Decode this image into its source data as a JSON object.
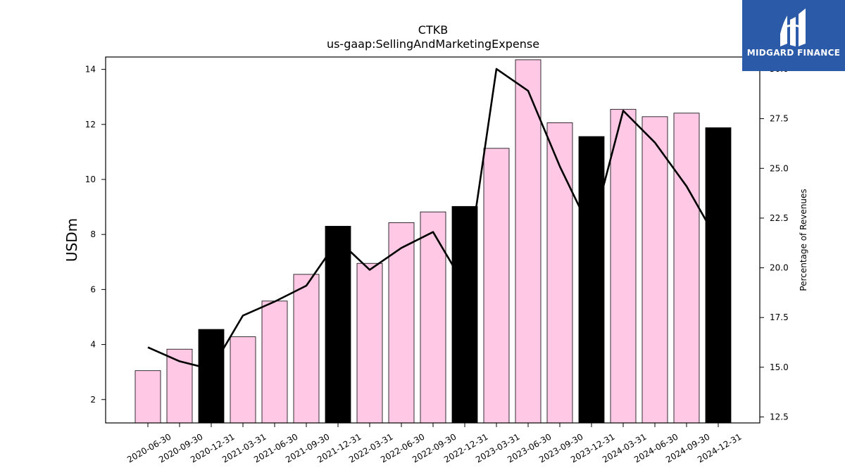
{
  "chart_data": {
    "type": "bar",
    "title": "CTKB",
    "subtitle": "us-gaap:SellingAndMarketingExpense",
    "ylabel": "USDm",
    "y2label": "Percentage of Revenues",
    "categories": [
      "2020-06-30",
      "2020-09-30",
      "2020-12-31",
      "2021-03-31",
      "2021-06-30",
      "2021-09-30",
      "2021-12-31",
      "2022-03-31",
      "2022-06-30",
      "2022-09-30",
      "2022-12-31",
      "2023-03-31",
      "2023-06-30",
      "2023-09-30",
      "2023-12-31",
      "2024-03-31",
      "2024-06-30",
      "2024-09-30",
      "2024-12-31"
    ],
    "series": [
      {
        "values": [
          3.05,
          3.83,
          4.55,
          4.28,
          5.58,
          6.55,
          8.3,
          6.95,
          8.43,
          8.82,
          9.02,
          11.13,
          14.35,
          12.06,
          11.56,
          12.55,
          12.28,
          12.41,
          11.88
        ],
        "colors": [
          "#ffc9e5",
          "#ffc9e5",
          "#000000",
          "#ffc9e5",
          "#ffc9e5",
          "#ffc9e5",
          "#000000",
          "#ffc9e5",
          "#ffc9e5",
          "#ffc9e5",
          "#000000",
          "#ffc9e5",
          "#ffc9e5",
          "#ffc9e5",
          "#000000",
          "#ffc9e5",
          "#ffc9e5",
          "#ffc9e5",
          "#000000"
        ]
      },
      {
        "type": "line",
        "axis": "right",
        "values": [
          16.0,
          15.3,
          14.9,
          17.6,
          18.3,
          19.1,
          21.4,
          19.9,
          21.0,
          21.8,
          19.1,
          30.0,
          28.9,
          25.1,
          21.8,
          27.9,
          26.3,
          24.1,
          21.3
        ],
        "color": "#000000"
      }
    ],
    "ylim": [
      1.15,
      14.45
    ],
    "yticks": [
      2,
      4,
      6,
      8,
      10,
      12,
      14
    ],
    "y2lim": [
      12.2,
      30.6
    ],
    "y2ticks": [
      12.5,
      15.0,
      17.5,
      20.0,
      22.5,
      25.0,
      27.5,
      30.0
    ],
    "grid": false,
    "legend": "none"
  },
  "logo": {
    "text": "MIDGARD FINANCE",
    "color": "#2b5aa8"
  }
}
